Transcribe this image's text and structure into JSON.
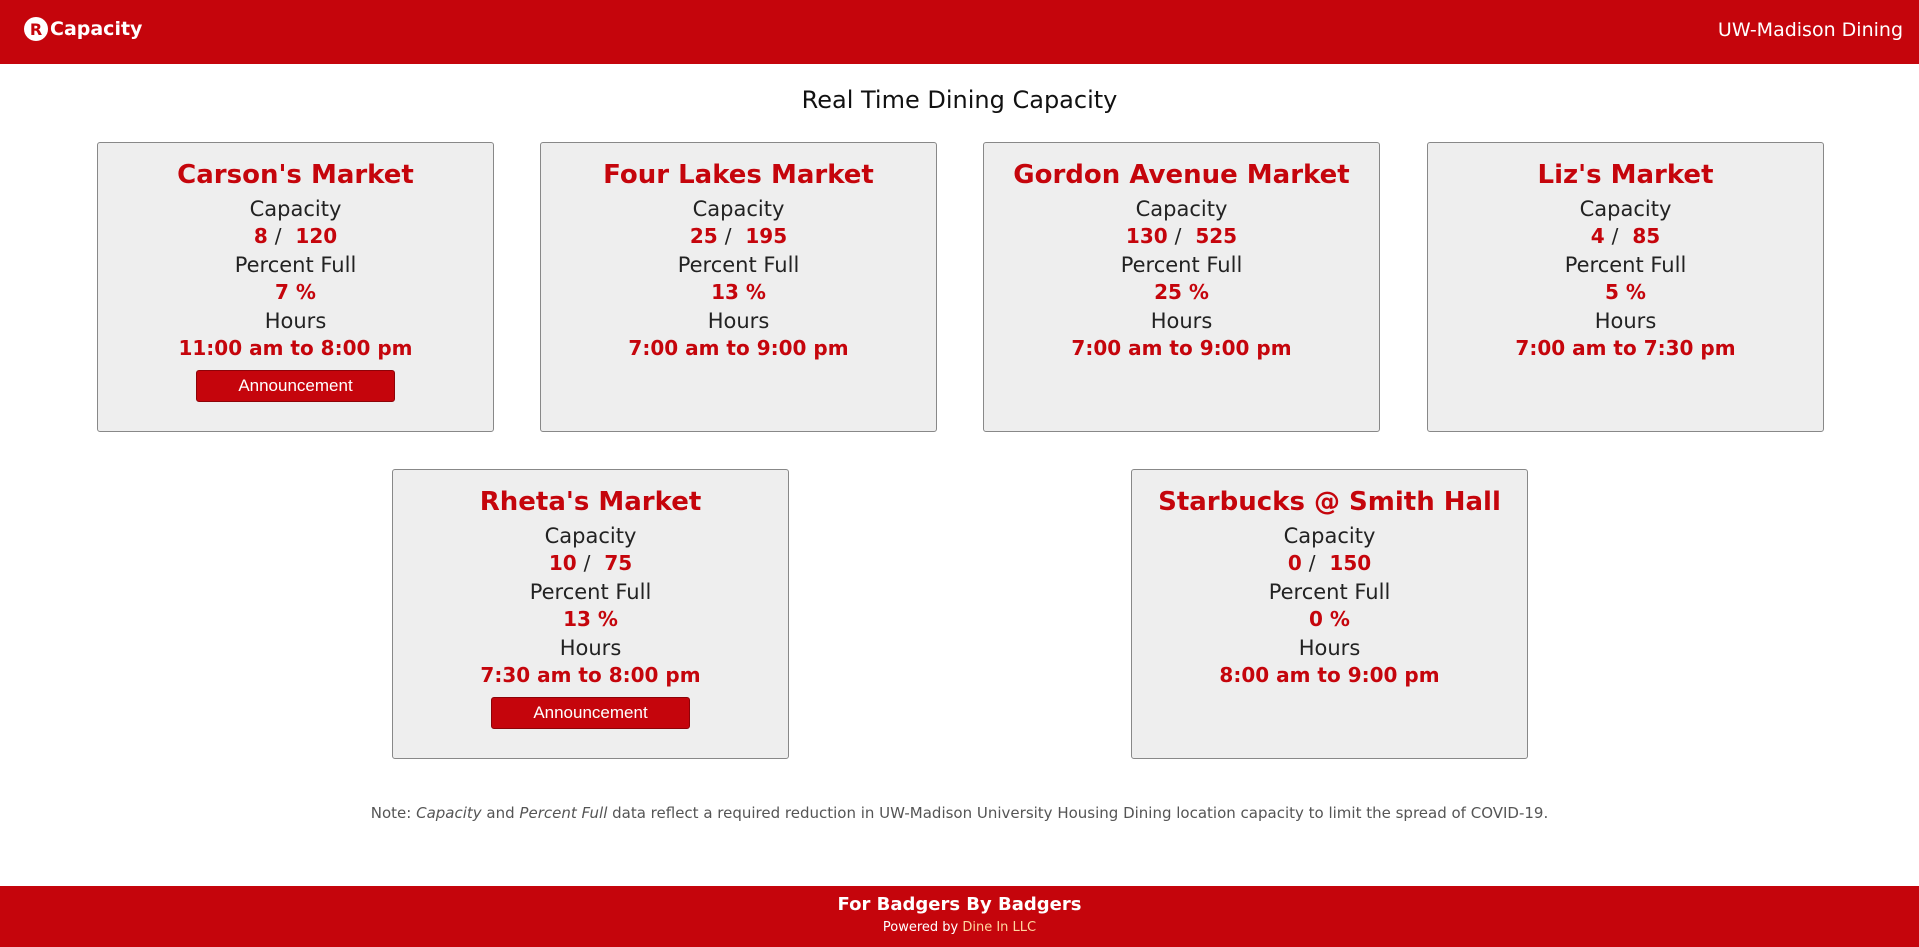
{
  "header": {
    "logo_letter": "R",
    "app_name": "Capacity",
    "org": "UW-Madison Dining"
  },
  "page_title": "Real Time Dining Capacity",
  "labels": {
    "capacity": "Capacity",
    "percent": "Percent Full",
    "hours": "Hours",
    "announcement": "Announcement"
  },
  "locations": [
    {
      "name": "Carson's Market",
      "current": "8",
      "max": "120",
      "percent": "7 %",
      "hours": "11:00 am to 8:00 pm",
      "announcement": true
    },
    {
      "name": "Four Lakes Market",
      "current": "25",
      "max": "195",
      "percent": "13 %",
      "hours": "7:00 am to 9:00 pm",
      "announcement": false
    },
    {
      "name": "Gordon Avenue Market",
      "current": "130",
      "max": "525",
      "percent": "25 %",
      "hours": "7:00 am to 9:00 pm",
      "announcement": false
    },
    {
      "name": "Liz's Market",
      "current": "4",
      "max": "85",
      "percent": "5 %",
      "hours": "7:00 am to 7:30 pm",
      "announcement": false
    },
    {
      "name": "Rheta's Market",
      "current": "10",
      "max": "75",
      "percent": "13 %",
      "hours": "7:30 am to 8:00 pm",
      "announcement": true
    },
    {
      "name": "Starbucks @ Smith Hall",
      "current": "0",
      "max": "150",
      "percent": "0 %",
      "hours": "8:00 am to 9:00 pm",
      "announcement": false
    }
  ],
  "note": {
    "prefix": "Note: ",
    "em1": "Capacity",
    "mid": " and ",
    "em2": "Percent Full",
    "rest": " data reflect a required reduction in UW-Madison University Housing Dining location capacity to limit the spread of COVID-19."
  },
  "footer": {
    "tagline": "For Badgers By Badgers",
    "powered_by": "Powered by ",
    "company": "Dine In LLC"
  },
  "colors": {
    "brand": "#c5050c",
    "card_bg": "#eeeeee"
  }
}
